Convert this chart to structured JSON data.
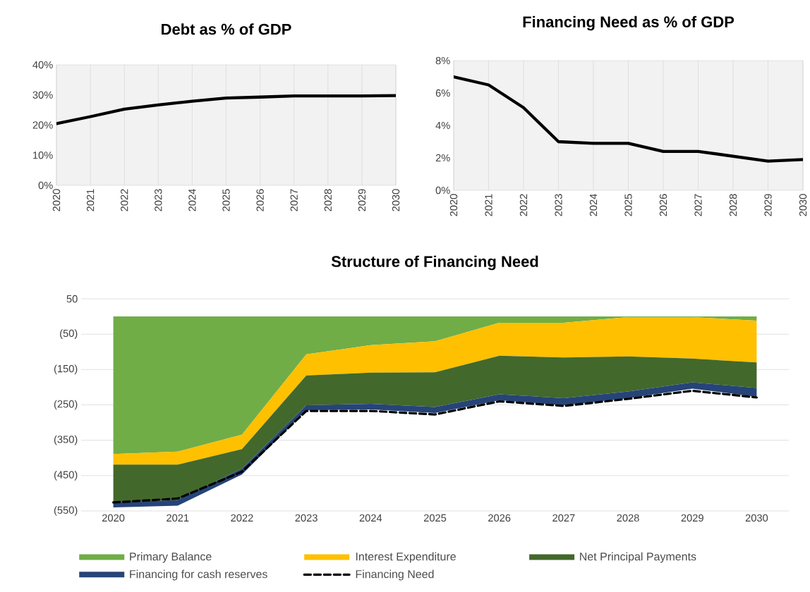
{
  "chart_data": [
    {
      "type": "line",
      "title": "Debt as % of GDP",
      "categories": [
        "2020",
        "2021",
        "2022",
        "2023",
        "2024",
        "2025",
        "2026",
        "2027",
        "2028",
        "2029",
        "2030"
      ],
      "ylim": [
        0,
        40
      ],
      "yticks": [
        {
          "value": 0,
          "label": "0%"
        },
        {
          "value": 10,
          "label": "10%"
        },
        {
          "value": 20,
          "label": "20%"
        },
        {
          "value": 30,
          "label": "30%"
        },
        {
          "value": 40,
          "label": "40%"
        }
      ],
      "grid": "x",
      "series": [
        {
          "color": "#000000",
          "values": [
            20.5,
            22.8,
            25.3,
            26.7,
            27.9,
            29.0,
            29.3,
            29.7,
            29.7,
            29.7,
            29.8
          ]
        }
      ]
    },
    {
      "type": "line",
      "title": "Financing  Need as % of GDP",
      "categories": [
        "2020",
        "2021",
        "2022",
        "2023",
        "2024",
        "2025",
        "2026",
        "2027",
        "2028",
        "2029",
        "2030"
      ],
      "ylim": [
        0,
        8
      ],
      "yticks": [
        {
          "value": 0,
          "label": "0%"
        },
        {
          "value": 2,
          "label": "2%"
        },
        {
          "value": 4,
          "label": "4%"
        },
        {
          "value": 6,
          "label": "6%"
        },
        {
          "value": 8,
          "label": "8%"
        }
      ],
      "grid": "x",
      "series": [
        {
          "color": "#000000",
          "values": [
            7.0,
            6.5,
            5.1,
            3.0,
            2.9,
            2.9,
            2.4,
            2.4,
            2.1,
            1.8,
            1.9
          ]
        }
      ]
    },
    {
      "type": "area",
      "stacked": true,
      "title": "Structure of Financing Need",
      "categories": [
        "2020",
        "2021",
        "2022",
        "2023",
        "2024",
        "2025",
        "2026",
        "2027",
        "2028",
        "2029",
        "2030"
      ],
      "ylim": [
        -550,
        50
      ],
      "yticks": [
        50,
        {
          "value": -50,
          "label": "(50)"
        },
        {
          "value": -150,
          "label": "(150)"
        },
        {
          "value": -250,
          "label": "(250)"
        },
        {
          "value": -350,
          "label": "(350)"
        },
        {
          "value": -450,
          "label": "(450)"
        },
        {
          "value": -550,
          "label": "(550)"
        }
      ],
      "grid": "y",
      "legend": "bottom",
      "series": [
        {
          "name": "Primary Balance",
          "color": "#70ad47",
          "values": [
            -389,
            -382,
            -334,
            -107,
            -81,
            -70,
            -18,
            -18,
            -2,
            -2,
            -12
          ]
        },
        {
          "name": "Interest Expenditure",
          "color": "#ffc000",
          "values": [
            -30,
            -37,
            -41,
            -60,
            -78,
            -88,
            -93,
            -98,
            -111,
            -117,
            -118
          ]
        },
        {
          "name": "Net Principal Payments",
          "color": "#43682b",
          "values": [
            -107,
            -100,
            -55,
            -84,
            -88,
            -98,
            -109,
            -115,
            -99,
            -67,
            -72
          ]
        },
        {
          "name": "Financing for cash reserves",
          "color": "#264478",
          "values": [
            -14,
            -16,
            -17,
            -14,
            -16,
            -17,
            -17,
            -20,
            -19,
            -18,
            -25
          ]
        },
        {
          "name": "Financing Need",
          "type": "line",
          "line_style": "dashed",
          "color": "#000000",
          "values": [
            -526,
            -515,
            -439,
            -267,
            -267,
            -277,
            -240,
            -253,
            -233,
            -210,
            -229
          ]
        }
      ]
    }
  ]
}
